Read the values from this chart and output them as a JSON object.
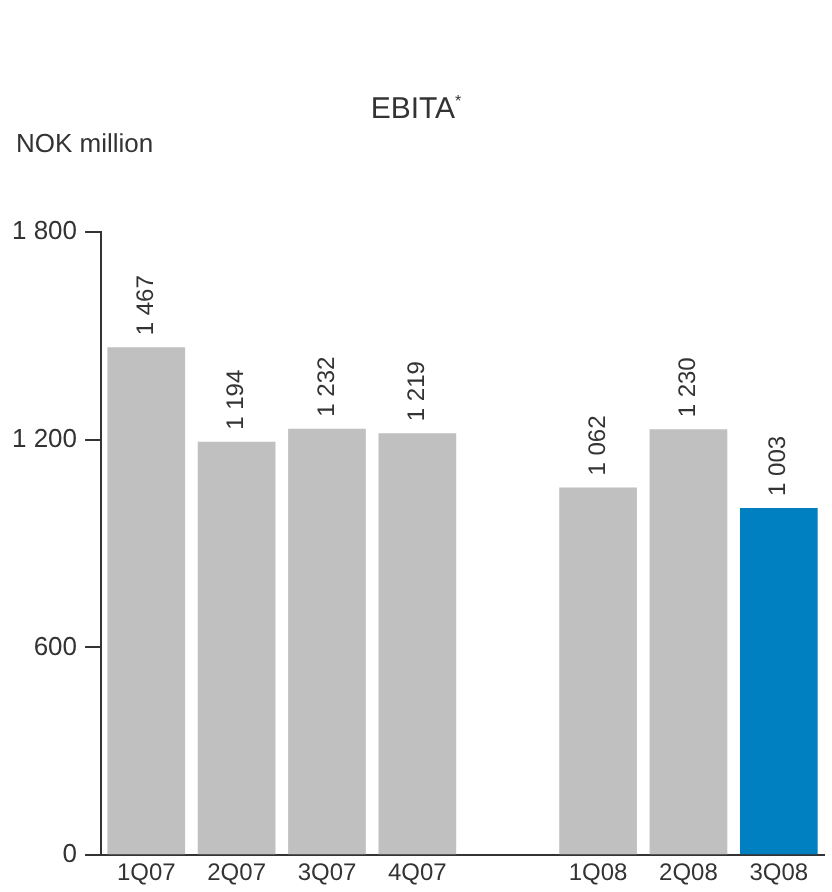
{
  "chart_data": {
    "type": "bar",
    "title": "EBITA$^{*}$",
    "ylabel": "NOK million",
    "categories": [
      "1Q07",
      "2Q07",
      "3Q07",
      "4Q07",
      null,
      "1Q08",
      "2Q08",
      "3Q08"
    ],
    "values": [
      1467,
      1194,
      1232,
      1219,
      null,
      1062,
      1230,
      1003
    ],
    "colors": [
      "#c0c0c0",
      "#c0c0c0",
      "#c0c0c0",
      "#c0c0c0",
      "#c0c0c0",
      "#c0c0c0",
      "#c0c0c0",
      "#0080c0"
    ],
    "value_labels": [
      "1 467",
      "1 194",
      "1 232",
      "1 219",
      null,
      "1 062",
      "1 230",
      "1 003"
    ],
    "ylim": [
      0,
      1800
    ],
    "yticks": [
      0,
      600,
      {
        "value": 1200,
        "label": "1 200"
      },
      {
        "value": 1800,
        "label": "1 800"
      }
    ],
    "legend": false
  }
}
